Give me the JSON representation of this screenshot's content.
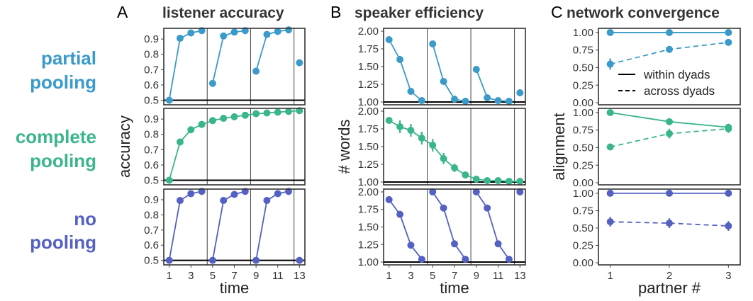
{
  "colors": {
    "partial": "#3a9ac9",
    "complete": "#3ab58d",
    "none": "#5460c2"
  },
  "rows": [
    {
      "key": "partial",
      "label_line1": "partial",
      "label_line2": "pooling"
    },
    {
      "key": "complete",
      "label_line1": "complete",
      "label_line2": "pooling"
    },
    {
      "key": "none",
      "label_line1": "no",
      "label_line2": "pooling"
    }
  ],
  "columns": [
    {
      "letter": "A",
      "title": "listener accuracy"
    },
    {
      "letter": "B",
      "title": "speaker efficiency"
    },
    {
      "letter": "C",
      "title": "network convergence"
    }
  ],
  "chart_data": [
    {
      "type": "line",
      "title": "listener accuracy",
      "xlabel": "time",
      "ylabel": "accuracy",
      "xlim": [
        0.5,
        13.5
      ],
      "ylim": [
        0.47,
        0.97
      ],
      "xticks": [
        1,
        3,
        5,
        7,
        9,
        11,
        13
      ],
      "yticks": [
        0.5,
        0.6,
        0.7,
        0.8,
        0.9
      ],
      "reference_line": 0.5,
      "block_separators": [
        4.5,
        8.5,
        12.5
      ],
      "facets": [
        {
          "row": "partial",
          "segments": [
            {
              "x": [
                1,
                2,
                3,
                4
              ],
              "y": [
                0.5,
                0.905,
                0.94,
                0.955
              ]
            },
            {
              "x": [
                5,
                6,
                7,
                8
              ],
              "y": [
                0.61,
                0.92,
                0.945,
                0.955
              ]
            },
            {
              "x": [
                9,
                10,
                11,
                12
              ],
              "y": [
                0.69,
                0.93,
                0.95,
                0.96
              ]
            },
            {
              "x": [
                13
              ],
              "y": [
                0.745
              ]
            }
          ]
        },
        {
          "row": "complete",
          "segments": [
            {
              "x": [
                1,
                2,
                3,
                4,
                5,
                6,
                7,
                8,
                9,
                10,
                11,
                12,
                13
              ],
              "y": [
                0.5,
                0.75,
                0.83,
                0.865,
                0.89,
                0.905,
                0.915,
                0.925,
                0.935,
                0.94,
                0.945,
                0.95,
                0.955
              ]
            }
          ]
        },
        {
          "row": "none",
          "segments": [
            {
              "x": [
                1,
                2,
                3,
                4
              ],
              "y": [
                0.5,
                0.895,
                0.94,
                0.955
              ]
            },
            {
              "x": [
                5,
                6,
                7,
                8
              ],
              "y": [
                0.5,
                0.895,
                0.935,
                0.955
              ]
            },
            {
              "x": [
                9,
                10,
                11,
                12
              ],
              "y": [
                0.5,
                0.895,
                0.94,
                0.955
              ]
            },
            {
              "x": [
                13
              ],
              "y": [
                0.5
              ]
            }
          ]
        }
      ]
    },
    {
      "type": "line",
      "title": "speaker efficiency",
      "xlabel": "time",
      "ylabel": "# words",
      "xlim": [
        0.5,
        13.5
      ],
      "ylim": [
        0.96,
        2.04
      ],
      "xticks": [
        1,
        3,
        5,
        7,
        9,
        11,
        13
      ],
      "yticks": [
        1.0,
        1.25,
        1.5,
        1.75,
        2.0
      ],
      "ytick_labels": [
        "1.00",
        "1.25",
        "1.50",
        "1.75",
        "2.00"
      ],
      "reference_line": 1.0,
      "block_separators": [
        4.5,
        8.5,
        12.5
      ],
      "facets": [
        {
          "row": "partial",
          "segments": [
            {
              "x": [
                1,
                2,
                3,
                4
              ],
              "y": [
                1.88,
                1.6,
                1.15,
                1.02
              ],
              "err": [
                0.02,
                0.05,
                0.03,
                0.01
              ]
            },
            {
              "x": [
                5,
                6,
                7,
                8
              ],
              "y": [
                1.82,
                1.29,
                1.04,
                1.01
              ],
              "err": [
                0.04,
                0.03,
                0.01,
                0.01
              ]
            },
            {
              "x": [
                9,
                10,
                11,
                12
              ],
              "y": [
                1.46,
                1.06,
                1.02,
                1.01
              ],
              "err": [
                0.05,
                0.02,
                0.01,
                0.01
              ]
            },
            {
              "x": [
                13
              ],
              "y": [
                1.13
              ],
              "err": [
                0.01
              ]
            }
          ]
        },
        {
          "row": "complete",
          "segments": [
            {
              "x": [
                1,
                2,
                3,
                4,
                5,
                6,
                7,
                8,
                9,
                10,
                11,
                12,
                13
              ],
              "y": [
                1.87,
                1.78,
                1.73,
                1.62,
                1.52,
                1.33,
                1.2,
                1.1,
                1.04,
                1.02,
                1.02,
                1.01,
                1.01
              ],
              "err": [
                0.03,
                0.09,
                0.09,
                0.09,
                0.09,
                0.08,
                0.06,
                0.04,
                0.03,
                0.02,
                0.02,
                0.02,
                0.02
              ]
            }
          ]
        },
        {
          "row": "none",
          "segments": [
            {
              "x": [
                1,
                2,
                3,
                4
              ],
              "y": [
                1.89,
                1.68,
                1.24,
                1.04
              ],
              "err": [
                0.01,
                0.01,
                0.01,
                0.01
              ]
            },
            {
              "x": [
                5,
                6,
                7,
                8
              ],
              "y": [
                2.0,
                1.77,
                1.26,
                1.04
              ],
              "err": [
                0.01,
                0.01,
                0.01,
                0.01
              ]
            },
            {
              "x": [
                9,
                10,
                11,
                12
              ],
              "y": [
                2.0,
                1.77,
                1.26,
                1.04
              ],
              "err": [
                0.01,
                0.01,
                0.01,
                0.01
              ]
            },
            {
              "x": [
                13
              ],
              "y": [
                2.0
              ],
              "err": [
                0.01
              ]
            }
          ]
        }
      ]
    },
    {
      "type": "line",
      "title": "network convergence",
      "xlabel": "partner #",
      "ylabel": "alignment",
      "xlim": [
        0.8,
        3.2
      ],
      "ylim": [
        -0.03,
        1.06
      ],
      "xticks": [
        1,
        2,
        3
      ],
      "yticks": [
        0.0,
        0.25,
        0.5,
        0.75,
        1.0
      ],
      "ytick_labels": [
        "0.00",
        "0.25",
        "0.50",
        "0.75",
        "1.00"
      ],
      "legend": {
        "position": "bottom-right of top facet",
        "entries": [
          {
            "label": "within dyads",
            "style": "solid"
          },
          {
            "label": "across dyads",
            "style": "dashed"
          }
        ]
      },
      "facets": [
        {
          "row": "partial",
          "series": [
            {
              "name": "within dyads",
              "style": "solid",
              "x": [
                1,
                2,
                3
              ],
              "y": [
                1.0,
                1.0,
                1.0
              ],
              "err": [
                0.01,
                0.01,
                0.01
              ]
            },
            {
              "name": "across dyads",
              "style": "dashed",
              "x": [
                1,
                2,
                3
              ],
              "y": [
                0.55,
                0.76,
                0.86
              ],
              "err": [
                0.08,
                0.04,
                0.02
              ]
            }
          ]
        },
        {
          "row": "complete",
          "series": [
            {
              "name": "within dyads",
              "style": "solid",
              "x": [
                1,
                2,
                3
              ],
              "y": [
                1.0,
                0.87,
                0.79
              ],
              "err": [
                0.02,
                0.02,
                0.05
              ]
            },
            {
              "name": "across dyads",
              "style": "dashed",
              "x": [
                1,
                2,
                3
              ],
              "y": [
                0.51,
                0.7,
                0.77
              ],
              "err": [
                0.02,
                0.07,
                0.06
              ]
            }
          ]
        },
        {
          "row": "none",
          "series": [
            {
              "name": "within dyads",
              "style": "solid",
              "x": [
                1,
                2,
                3
              ],
              "y": [
                1.0,
                1.0,
                1.0
              ],
              "err": [
                0.01,
                0.01,
                0.01
              ]
            },
            {
              "name": "across dyads",
              "style": "dashed",
              "x": [
                1,
                2,
                3
              ],
              "y": [
                0.59,
                0.57,
                0.53
              ],
              "err": [
                0.07,
                0.07,
                0.07
              ]
            }
          ]
        }
      ]
    }
  ]
}
